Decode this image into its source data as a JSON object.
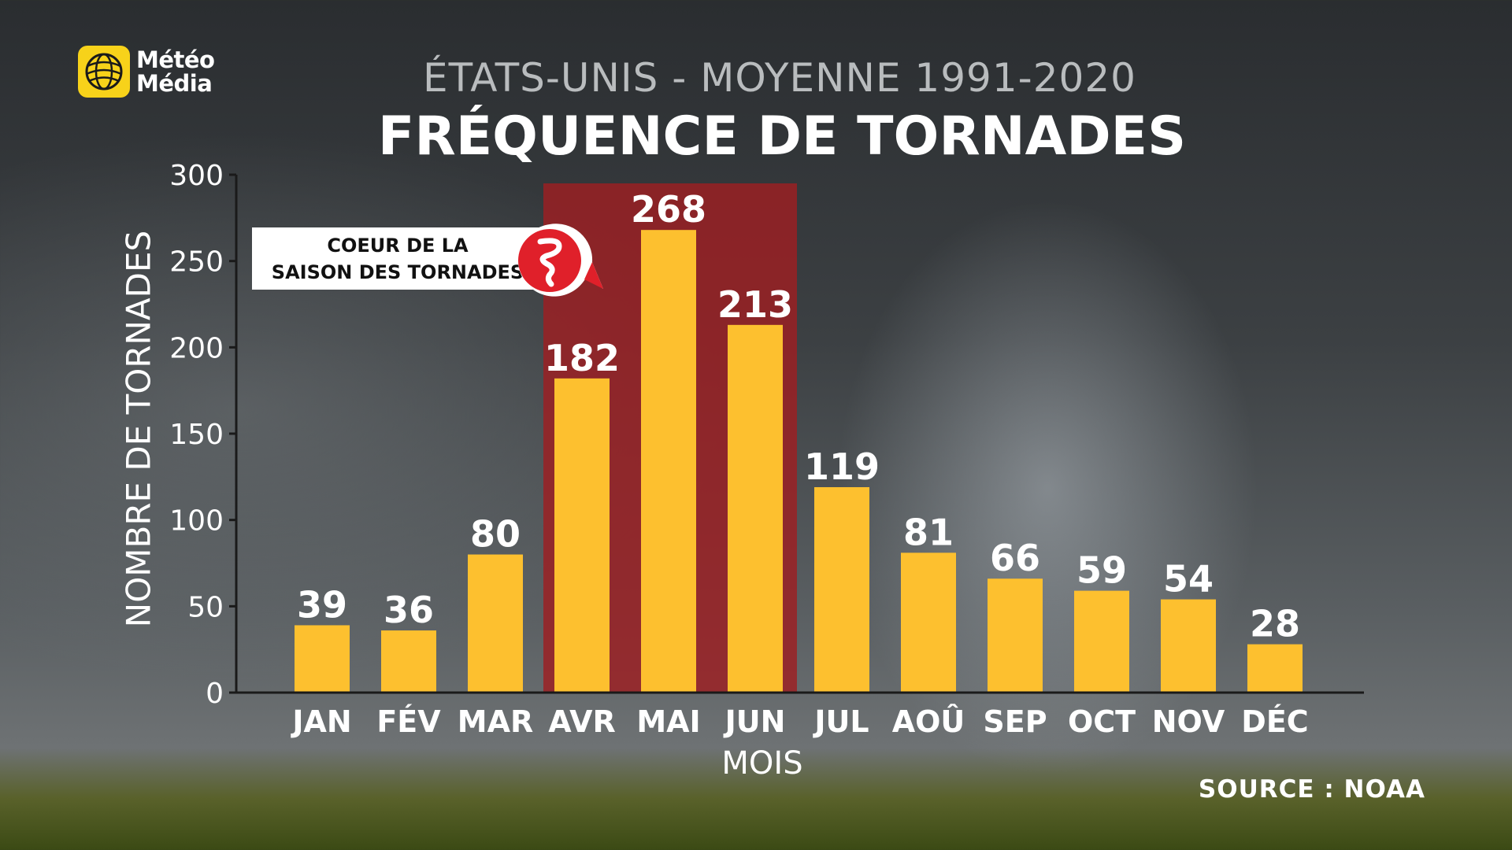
{
  "brand": {
    "line1": "Météo",
    "line2": "Média",
    "icon": "globe-logo-icon"
  },
  "subtitle": "ÉTATS-UNIS - MOYENNE 1991-2020",
  "title": "FRÉQUENCE DE TORNADES",
  "source": "SOURCE : NOAA",
  "callout": {
    "line1": "COEUR DE LA",
    "line2": "SAISON DES TORNADES",
    "icon": "tornado-badge-icon"
  },
  "chart_data": {
    "type": "bar",
    "title": "FRÉQUENCE DE TORNADES",
    "subtitle": "ÉTATS-UNIS - MOYENNE 1991-2020",
    "xlabel": "MOIS",
    "ylabel": "NOMBRE DE TORNADES",
    "categories": [
      "JAN",
      "FÉV",
      "MAR",
      "AVR",
      "MAI",
      "JUN",
      "JUL",
      "AOÛ",
      "SEP",
      "OCT",
      "NOV",
      "DÉC"
    ],
    "values": [
      39,
      36,
      80,
      182,
      268,
      213,
      119,
      81,
      66,
      59,
      54,
      28
    ],
    "ylim": [
      0,
      300
    ],
    "yticks": [
      0,
      50,
      100,
      150,
      200,
      250,
      300
    ],
    "highlight": {
      "categories": [
        "AVR",
        "MAI",
        "JUN"
      ],
      "label": "COEUR DE LA SAISON DES TORNADES"
    },
    "grid": false,
    "colors": {
      "bar": "#fdc02f",
      "highlight": "#9e1e22",
      "badge": "#e0202a"
    }
  }
}
